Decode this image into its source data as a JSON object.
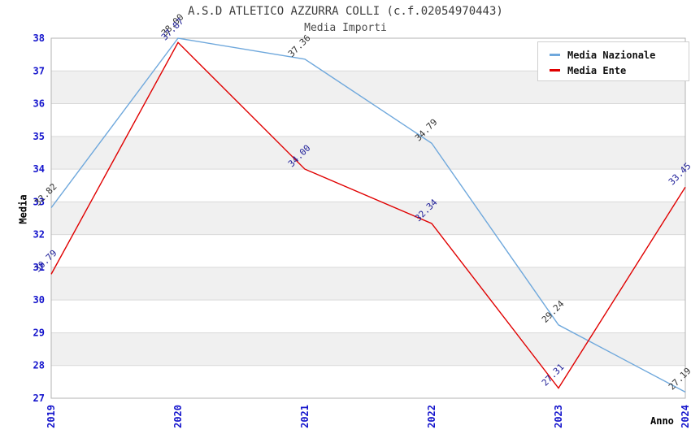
{
  "chart_data": {
    "type": "line",
    "title": "A.S.D ATLETICO AZZURRA COLLI (c.f.02054970443)",
    "subtitle": "Media Importi",
    "xlabel": "Anno",
    "ylabel": "Media",
    "x": [
      "2019",
      "2020",
      "2021",
      "2022",
      "2023",
      "2024"
    ],
    "ylim": [
      27,
      38
    ],
    "yticks": [
      27,
      28,
      29,
      30,
      31,
      32,
      33,
      34,
      35,
      36,
      37,
      38
    ],
    "gray_bands": [
      [
        36,
        37
      ],
      [
        34,
        35
      ],
      [
        32,
        33
      ],
      [
        30,
        31
      ],
      [
        28,
        29
      ]
    ],
    "legend_position": "top-right",
    "grid": "horizontal",
    "series": [
      {
        "name": "Media Nazionale",
        "color": "#6fa8dc",
        "label_color": "#333333",
        "values": [
          32.82,
          38.0,
          37.36,
          34.79,
          29.24,
          27.19
        ],
        "labels": [
          "32.82",
          "38.00",
          "37.36",
          "34.79",
          "29.24",
          "27.19"
        ]
      },
      {
        "name": "Media Ente",
        "color": "#e00000",
        "label_color": "#202099",
        "values": [
          30.79,
          37.87,
          34.0,
          32.34,
          27.31,
          33.45
        ],
        "labels": [
          "30.79",
          "37.87",
          "34.00",
          "32.34",
          "27.31",
          "33.45"
        ]
      }
    ],
    "axis_tick_color": "#1414cc",
    "grid_color": "#d9d9d9",
    "band_color": "#f0f0f0",
    "border_color": "#b3b3b3"
  }
}
